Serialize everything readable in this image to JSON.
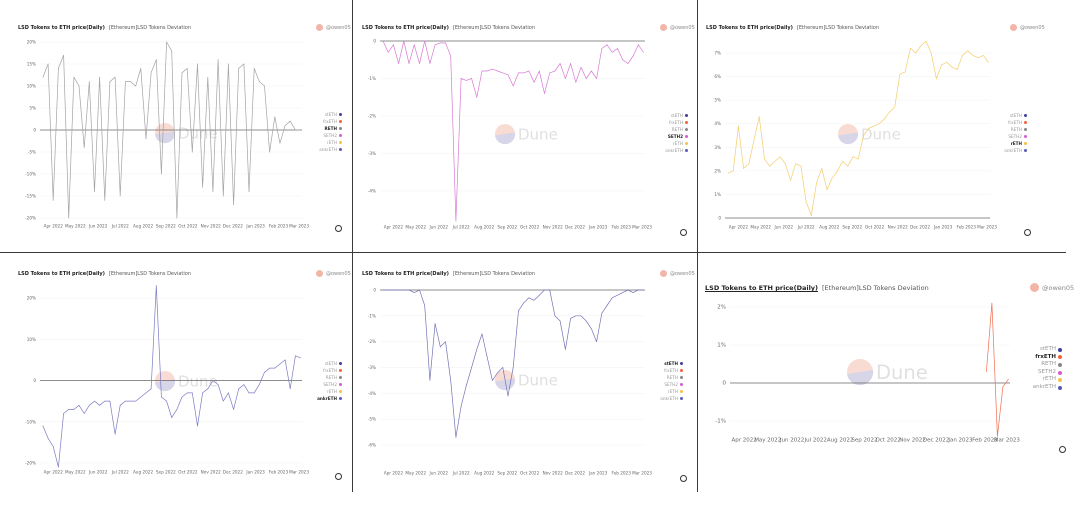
{
  "panel_common": {
    "title": "LSD Tokens to ETH price(Daily)",
    "subtitle": "[Ethereum]LSD Tokens Deviation",
    "author": "@owen05",
    "watermark": "Dune"
  },
  "legend": [
    {
      "name": "stETH",
      "color": "#3f3f9f"
    },
    {
      "name": "frxETH",
      "color": "#f0643c"
    },
    {
      "name": "RETH",
      "color": "#888888"
    },
    {
      "name": "SETH2",
      "color": "#d65bd0"
    },
    {
      "name": "rETH",
      "color": "#f5c242"
    },
    {
      "name": "ankrETH",
      "color": "#5a5ab8"
    }
  ],
  "chart_data": {
    "type": "line",
    "x_tick_labels": [
      "Apr 2022",
      "May 2022",
      "Jun 2022",
      "Jul 2022",
      "Aug 2022",
      "Sep 2022",
      "Oct 2022",
      "Nov 2022",
      "Dec 2022",
      "Jan 2023",
      "Feb 2023",
      "Mar 2023"
    ],
    "x": [
      "2022-03-18",
      "2022-03-25",
      "2022-04-01",
      "2022-04-08",
      "2022-04-15",
      "2022-04-22",
      "2022-04-29",
      "2022-05-06",
      "2022-05-13",
      "2022-05-20",
      "2022-05-27",
      "2022-06-03",
      "2022-06-10",
      "2022-06-17",
      "2022-06-24",
      "2022-07-01",
      "2022-07-08",
      "2022-07-15",
      "2022-07-22",
      "2022-07-29",
      "2022-08-05",
      "2022-08-12",
      "2022-08-19",
      "2022-08-26",
      "2022-09-02",
      "2022-09-09",
      "2022-09-16",
      "2022-09-23",
      "2022-09-30",
      "2022-10-07",
      "2022-10-14",
      "2022-10-21",
      "2022-10-28",
      "2022-11-04",
      "2022-11-11",
      "2022-11-18",
      "2022-11-25",
      "2022-12-02",
      "2022-12-09",
      "2022-12-16",
      "2022-12-23",
      "2022-12-30",
      "2023-01-06",
      "2023-01-13",
      "2023-01-20",
      "2023-01-27",
      "2023-02-03",
      "2023-02-10",
      "2023-02-17",
      "2023-02-24",
      "2023-03-03"
    ],
    "charts": [
      {
        "series": "RETH",
        "color": "#a3a3a3",
        "ylim": [
          -20,
          20
        ],
        "grid": true,
        "y_ticks": [
          {
            "v": 20,
            "label": "20%"
          },
          {
            "v": 15,
            "label": "15%"
          },
          {
            "v": 10,
            "label": "10%"
          },
          {
            "v": 5,
            "label": "5%"
          },
          {
            "v": 0,
            "label": "0"
          },
          {
            "v": -5,
            "label": "-5%"
          },
          {
            "v": -10,
            "label": "-10%"
          },
          {
            "v": -15,
            "label": "-15%"
          },
          {
            "v": -20,
            "label": "-20%"
          }
        ],
        "values": [
          12,
          15,
          -16,
          14,
          17,
          -20,
          12,
          10,
          -4,
          11,
          -14,
          12,
          -16,
          11,
          12,
          -15,
          11,
          11,
          10,
          14,
          -2,
          13,
          16,
          -10,
          20,
          18,
          -20,
          13,
          14,
          -5,
          15,
          -13,
          12,
          -14,
          16,
          -15,
          15,
          -17,
          14,
          15,
          -14,
          14,
          11,
          10,
          -5,
          3,
          -3,
          1,
          2,
          0,
          0
        ]
      },
      {
        "series": "SETH2",
        "color": "#d77bd4",
        "ylim": [
          -4.8,
          0
        ],
        "grid": true,
        "y_ticks": [
          {
            "v": 0,
            "label": "0"
          },
          {
            "v": -1,
            "label": "-1%"
          },
          {
            "v": -2,
            "label": "-2%"
          },
          {
            "v": -3,
            "label": "-3%"
          },
          {
            "v": -4,
            "label": "-4%"
          }
        ],
        "values": [
          0,
          -0.3,
          -0.1,
          -0.6,
          0,
          -0.6,
          -0.1,
          -0.6,
          0,
          -0.6,
          -0.1,
          -0.05,
          -0.05,
          -0.4,
          -4.8,
          -1.0,
          -1.05,
          -1.0,
          -1.5,
          -0.8,
          -0.8,
          -0.75,
          -0.8,
          -0.85,
          -0.9,
          -1.2,
          -0.85,
          -0.85,
          -0.8,
          -1.1,
          -0.8,
          -1.4,
          -0.85,
          -0.8,
          -0.6,
          -1.0,
          -0.6,
          -1.1,
          -0.7,
          -1.0,
          -0.8,
          -1.0,
          -0.2,
          -0.1,
          -0.3,
          -0.2,
          -0.5,
          -0.6,
          -0.4,
          -0.1,
          -0.3
        ]
      },
      {
        "series": "rETH",
        "color": "#f3cd6b",
        "ylim": [
          0,
          7
        ],
        "grid": true,
        "y_ticks": [
          {
            "v": 7,
            "label": "7%"
          },
          {
            "v": 6,
            "label": "6%"
          },
          {
            "v": 5,
            "label": "5%"
          },
          {
            "v": 4,
            "label": "4%"
          },
          {
            "v": 3,
            "label": "3%"
          },
          {
            "v": 2,
            "label": "2%"
          },
          {
            "v": 1,
            "label": "1%"
          },
          {
            "v": 0,
            "label": "0"
          }
        ],
        "values": [
          1.9,
          2.0,
          3.9,
          2.1,
          2.3,
          3.3,
          4.3,
          2.5,
          2.2,
          2.4,
          2.6,
          2.3,
          1.6,
          2.3,
          2.2,
          0.7,
          0.1,
          1.5,
          2.1,
          1.2,
          1.7,
          2.0,
          2.4,
          2.2,
          2.6,
          2.5,
          3.5,
          3.8,
          3.9,
          4.0,
          4.2,
          4.5,
          4.7,
          6.1,
          6.2,
          7.2,
          7.0,
          7.3,
          7.5,
          7.0,
          5.9,
          6.5,
          6.6,
          6.4,
          6.3,
          6.9,
          7.1,
          6.9,
          6.8,
          6.9,
          6.6
        ]
      },
      {
        "series": "ankrETH",
        "color": "#7b7bc4",
        "ylim": [
          -20,
          20
        ],
        "grid": true,
        "y_ticks": [
          {
            "v": 20,
            "label": "20%"
          },
          {
            "v": 10,
            "label": "10%"
          },
          {
            "v": 0,
            "label": "0"
          },
          {
            "v": -10,
            "label": "-10%"
          },
          {
            "v": -20,
            "label": "-20%"
          }
        ],
        "values": [
          -11,
          -14,
          -16,
          -21,
          -8,
          -7,
          -7,
          -6,
          -8,
          -6,
          -5,
          -6,
          -5,
          -5,
          -13,
          -6,
          -5,
          -5,
          -5,
          -4,
          -3,
          -2,
          23,
          -4,
          -5,
          -9,
          -7,
          -4,
          -3,
          -3,
          -11,
          -3,
          -2,
          0,
          -1,
          -5,
          -3,
          -7,
          -2,
          -1,
          -3,
          -3,
          -1,
          2,
          3,
          3,
          4,
          5,
          -2,
          6,
          5.5
        ]
      },
      {
        "series": "stETH",
        "color": "#7373b8",
        "ylim": [
          -6,
          0
        ],
        "grid": true,
        "y_ticks": [
          {
            "v": 0,
            "label": "0"
          },
          {
            "v": -1,
            "label": "-1%"
          },
          {
            "v": -2,
            "label": "-2%"
          },
          {
            "v": -3,
            "label": "-3%"
          },
          {
            "v": -4,
            "label": "-4%"
          },
          {
            "v": -5,
            "label": "-5%"
          },
          {
            "v": -6,
            "label": "-6%"
          }
        ],
        "values": [
          0,
          0,
          0,
          0,
          0,
          0,
          -0.1,
          0,
          -0.6,
          -3.5,
          -1.3,
          -2.2,
          -2.0,
          -3.5,
          -5.7,
          -4.5,
          -3.7,
          -3.0,
          -2.3,
          -1.7,
          -2.6,
          -3.5,
          -3.2,
          -3.0,
          -4.1,
          -3.0,
          -0.8,
          -0.5,
          -0.3,
          -0.4,
          -0.2,
          0,
          0,
          -1.0,
          -1.2,
          -2.3,
          -1.1,
          -1.0,
          -1.0,
          -1.2,
          -1.5,
          -2.0,
          -0.9,
          -0.6,
          -0.3,
          -0.2,
          -0.1,
          0,
          -0.1,
          0,
          0
        ]
      },
      {
        "series": "frxETH",
        "color": "#f07050",
        "ylim": [
          -1,
          2
        ],
        "grid": true,
        "y_ticks": [
          {
            "v": 2,
            "label": "2%"
          },
          {
            "v": 1,
            "label": "1%"
          },
          {
            "v": 0,
            "label": "0"
          },
          {
            "v": -1,
            "label": "-1%"
          }
        ],
        "values": [
          null,
          null,
          null,
          null,
          null,
          null,
          null,
          null,
          null,
          null,
          null,
          null,
          null,
          null,
          null,
          null,
          null,
          null,
          null,
          null,
          null,
          null,
          null,
          null,
          null,
          null,
          null,
          null,
          null,
          null,
          null,
          null,
          null,
          null,
          null,
          null,
          null,
          null,
          null,
          null,
          null,
          null,
          null,
          null,
          null,
          null,
          0.3,
          2.1,
          -1.4,
          -0.1,
          0.1
        ]
      }
    ]
  }
}
